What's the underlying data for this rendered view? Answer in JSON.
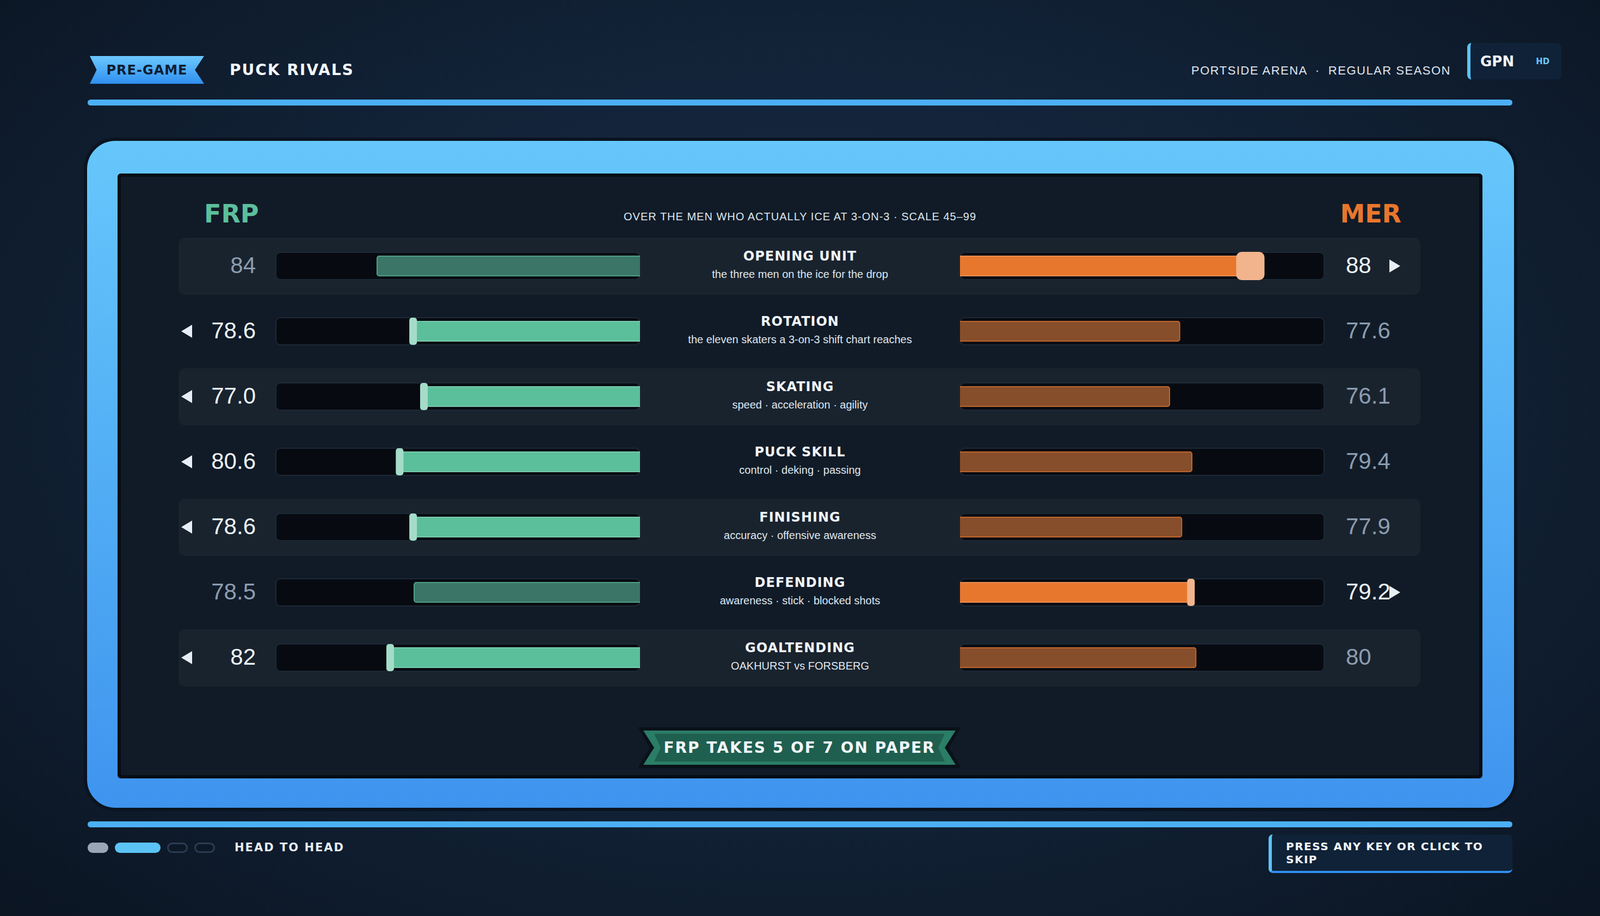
{
  "header": {
    "badge": "PRE-GAME",
    "title": "PUCK RIVALS",
    "venue": "PORTSIDE ARENA  ·  REGULAR SEASON",
    "network": "GPN",
    "network_tag": "HD"
  },
  "chart_data": {
    "type": "bar",
    "orientation": "horizontal",
    "title": "OVER THE MEN WHO ACTUALLY ICE AT 3-ON-3  ·  SCALE 45–99",
    "categories": [
      "OPENING UNIT",
      "ROTATION",
      "SKATING",
      "PUCK SKILL",
      "FINISHING",
      "DEFENDING",
      "GOALTENDING"
    ],
    "category_notes": [
      "the three men on the ice for the drop",
      "the eleven skaters a 3-on-3 shift chart reaches",
      "speed · acceleration · agility",
      "control · deking · passing",
      "accuracy · offensive awareness",
      "awareness · stick · blocked shots",
      "OAKHURST vs FORSBERG"
    ],
    "series": [
      {
        "name": "FRP",
        "color": "#5cbf9c",
        "values": [
          84,
          78.6,
          77.0,
          80.6,
          78.6,
          78.5,
          82
        ],
        "value_labels": [
          "84",
          "78.6",
          "77.0",
          "80.6",
          "78.6",
          "78.5",
          "82"
        ]
      },
      {
        "name": "MER",
        "color": "#e8772e",
        "values": [
          88,
          77.6,
          76.1,
          79.4,
          77.9,
          79.2,
          80
        ],
        "value_labels": [
          "88",
          "77.6",
          "76.1",
          "79.4",
          "77.9",
          "79.2",
          "80"
        ]
      }
    ],
    "xlim": [
      45,
      99
    ],
    "grid": false,
    "tick_labels": false,
    "data_labels": true
  },
  "verdict": "FRP TAKES 5 OF 7 ON PAPER",
  "footer": {
    "page_label": "HEAD TO HEAD",
    "pages": 4,
    "current_page": 2,
    "skip": "PRESS ANY KEY OR CLICK TO SKIP"
  }
}
